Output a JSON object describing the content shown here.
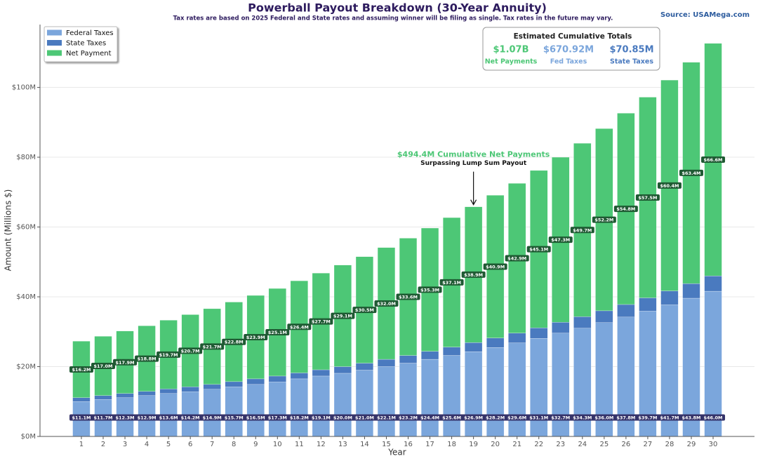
{
  "chart_data": {
    "type": "stacked_bar",
    "title": "Powerball Payout Breakdown (30-Year Annuity)",
    "subtitle": "Tax rates are based on 2025 Federal and State rates and assuming winner will be filing as single. Tax rates in the future may vary.",
    "source": "Source: USAMega.com",
    "x_label": "Year",
    "y_label": "Amount (Millions $)",
    "x": [
      1,
      2,
      3,
      4,
      5,
      6,
      7,
      8,
      9,
      10,
      11,
      12,
      13,
      14,
      15,
      16,
      17,
      18,
      19,
      20,
      21,
      22,
      23,
      24,
      25,
      26,
      27,
      28,
      29,
      30
    ],
    "xlim": [
      -0.9,
      31.9
    ],
    "xticks": [
      1,
      2,
      3,
      4,
      5,
      6,
      7,
      8,
      9,
      10,
      11,
      12,
      13,
      14,
      15,
      16,
      17,
      18,
      19,
      20,
      21,
      22,
      23,
      24,
      25,
      26,
      27,
      28,
      29,
      30
    ],
    "ylim": [
      0,
      118
    ],
    "yticks": [
      {
        "value": 0,
        "label": "$0M"
      },
      {
        "value": 20,
        "label": "$20M"
      },
      {
        "value": 40,
        "label": "$40M"
      },
      {
        "value": 60,
        "label": "$60M"
      },
      {
        "value": 80,
        "label": "$80M"
      },
      {
        "value": 100,
        "label": "$100M"
      }
    ],
    "grid": true,
    "legend": "upper left",
    "series": [
      {
        "name": "Federal Taxes",
        "color": "#7ba6dc",
        "values": [
          10.0,
          10.6,
          11.1,
          11.7,
          12.3,
          12.8,
          13.5,
          14.2,
          14.9,
          15.6,
          16.5,
          17.3,
          18.1,
          19.0,
          20.0,
          21.0,
          22.1,
          23.2,
          24.3,
          25.5,
          26.8,
          28.1,
          29.6,
          31.0,
          32.6,
          34.2,
          35.9,
          37.7,
          39.6,
          41.6
        ]
      },
      {
        "name": "State Taxes",
        "color": "#4a7abf",
        "values": [
          1.1,
          1.1,
          1.2,
          1.2,
          1.3,
          1.4,
          1.4,
          1.5,
          1.6,
          1.7,
          1.7,
          1.8,
          1.9,
          2.0,
          2.1,
          2.2,
          2.3,
          2.4,
          2.6,
          2.7,
          2.8,
          3.0,
          3.1,
          3.3,
          3.4,
          3.6,
          3.8,
          4.0,
          4.2,
          4.4
        ]
      },
      {
        "name": "Net Payment",
        "color": "#4dc776",
        "values": [
          16.2,
          17.0,
          17.9,
          18.8,
          19.7,
          20.7,
          21.7,
          22.8,
          23.9,
          25.1,
          26.4,
          27.7,
          29.1,
          30.5,
          32.0,
          33.6,
          35.3,
          37.1,
          38.9,
          40.9,
          42.9,
          45.1,
          47.3,
          49.7,
          52.2,
          54.8,
          57.5,
          60.4,
          63.4,
          66.6
        ],
        "value_labels": [
          "$16.2M",
          "$17.0M",
          "$17.9M",
          "$18.8M",
          "$19.7M",
          "$20.7M",
          "$21.7M",
          "$22.8M",
          "$23.9M",
          "$25.1M",
          "$26.4M",
          "$27.7M",
          "$29.1M",
          "$30.5M",
          "$32.0M",
          "$33.6M",
          "$35.3M",
          "$37.1M",
          "$38.9M",
          "$40.9M",
          "$42.9M",
          "$45.1M",
          "$47.3M",
          "$49.7M",
          "$52.2M",
          "$54.8M",
          "$57.5M",
          "$60.4M",
          "$63.4M",
          "$66.6M"
        ]
      }
    ],
    "tax_totals": {
      "values": [
        11.1,
        11.7,
        12.3,
        12.9,
        13.6,
        14.2,
        14.9,
        15.7,
        16.5,
        17.3,
        18.2,
        19.1,
        20.0,
        21.0,
        22.1,
        23.2,
        24.4,
        25.6,
        26.9,
        28.2,
        29.6,
        31.1,
        32.7,
        34.3,
        36.0,
        37.8,
        39.7,
        41.7,
        43.8,
        46.0
      ],
      "value_labels": [
        "$11.1M",
        "$11.7M",
        "$12.3M",
        "$12.9M",
        "$13.6M",
        "$14.2M",
        "$14.9M",
        "$15.7M",
        "$16.5M",
        "$17.3M",
        "$18.2M",
        "$19.1M",
        "$20.0M",
        "$21.0M",
        "$22.1M",
        "$23.2M",
        "$24.4M",
        "$25.6M",
        "$26.9M",
        "$28.2M",
        "$29.6M",
        "$31.1M",
        "$32.7M",
        "$34.3M",
        "$36.0M",
        "$37.8M",
        "$39.7M",
        "$41.7M",
        "$43.8M",
        "$46.0M"
      ]
    },
    "annotation": {
      "x": 19,
      "text": "$494.4M Cumulative Net Payments",
      "subtext": "Surpassing Lump Sum Payout",
      "color": "#4dc776"
    },
    "summary": {
      "title": "Estimated Cumulative Totals",
      "items": [
        {
          "value": "$1.07B",
          "name": "Net Payments",
          "color": "#4dc776"
        },
        {
          "value": "$670.92M",
          "name": "Fed Taxes",
          "color": "#7ba6dc"
        },
        {
          "value": "$70.85M",
          "name": "State Taxes",
          "color": "#4a7abf"
        }
      ]
    }
  }
}
